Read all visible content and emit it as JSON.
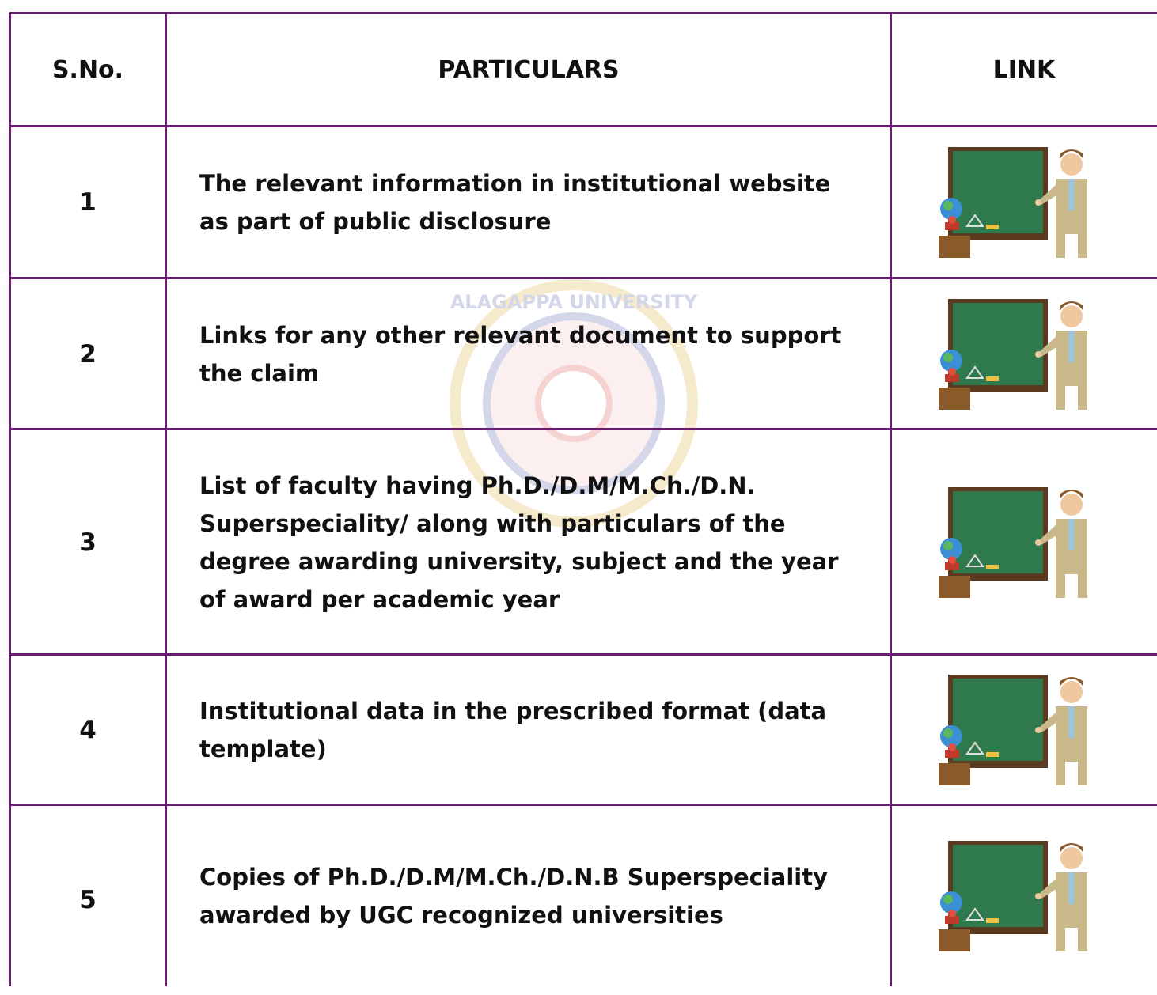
{
  "watermark": "ALAGAPPA UNIVERSITY",
  "table": {
    "header": [
      "S.No.",
      "PARTICULARS",
      "LINK"
    ],
    "rows": [
      [
        "1",
        "The relevant information in institutional website as part of public disclosure"
      ],
      [
        "2",
        "Links for any other relevant document to support the claim"
      ],
      [
        "3",
        "List of faculty having Ph.D./D.M/M.Ch./D.N. Superspeciality/ along with particulars of the degree awarding university, subject and the year of award per academic year"
      ],
      [
        "4",
        "Institutional data in the prescribed format (data template)"
      ],
      [
        "5",
        "Copies of Ph.D./D.M/M.Ch./D.N.B Superspeciality awarded by UGC recognized universities"
      ]
    ]
  }
}
